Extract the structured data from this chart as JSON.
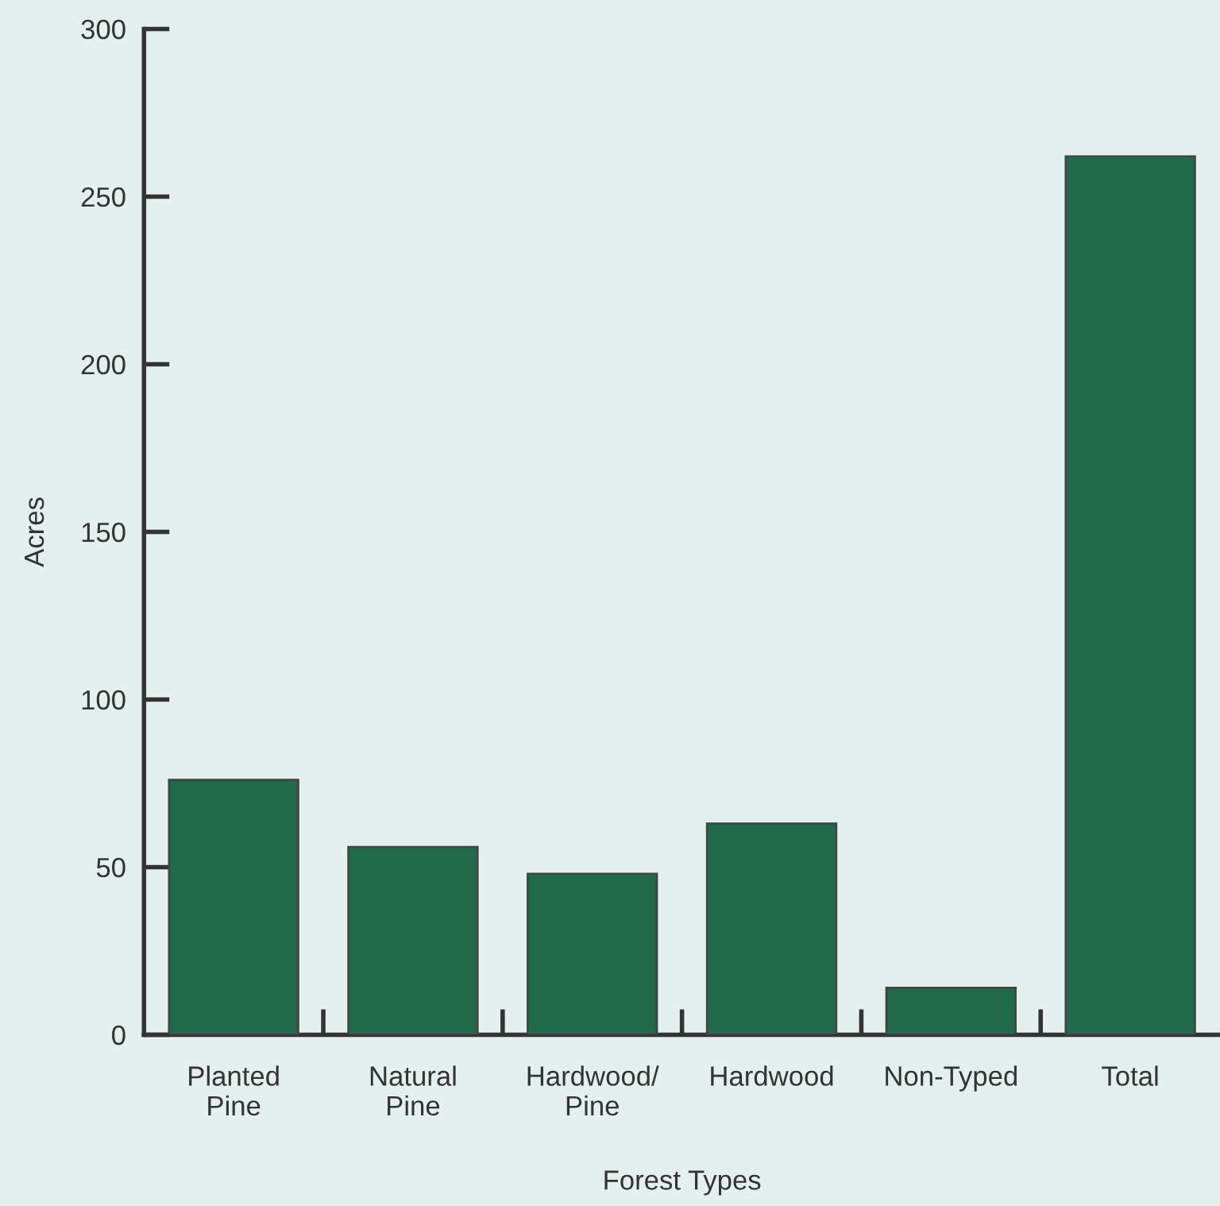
{
  "chart_data": {
    "type": "bar",
    "xlabel": "Forest Types",
    "ylabel": "Acres",
    "categories": [
      "Planted\nPine",
      "Natural\nPine",
      "Hardwood/\nPine",
      "Hardwood",
      "Non-Typed",
      "Total"
    ],
    "values": [
      76,
      56,
      48,
      63,
      14,
      262
    ],
    "color": "#1f6a4a",
    "ylim": [
      0,
      300
    ],
    "yticks": [
      0,
      50,
      100,
      150,
      200,
      250,
      300
    ],
    "grid": false,
    "legend": false
  }
}
